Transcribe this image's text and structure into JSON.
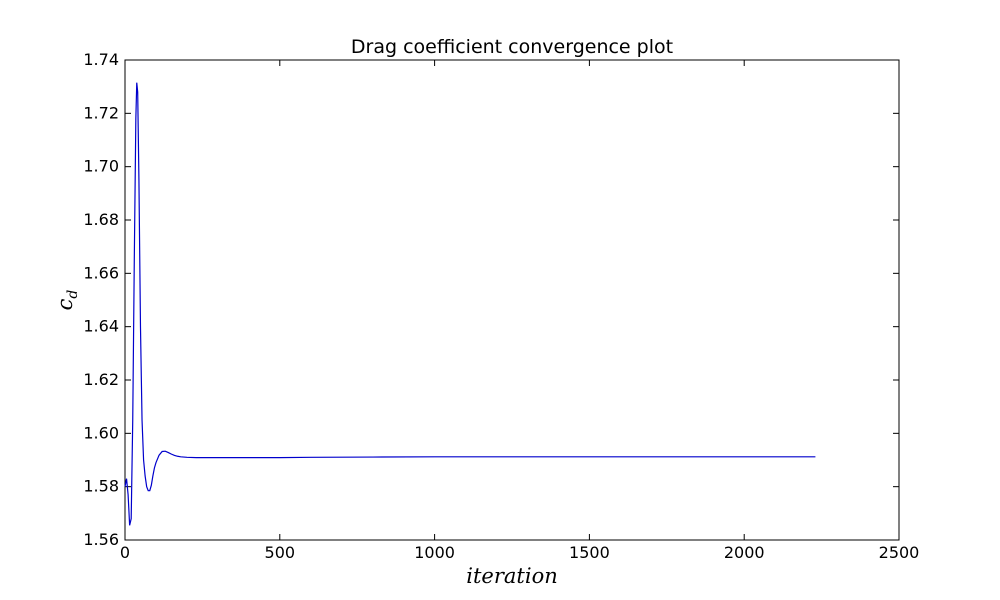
{
  "chart_data": {
    "type": "line",
    "title": "Drag coefficient convergence plot",
    "xlabel": "iteration",
    "ylabel": "c",
    "ylabel_subscript": "d",
    "xlim": [
      0,
      2500
    ],
    "ylim": [
      1.56,
      1.74
    ],
    "xticks": [
      0,
      500,
      1000,
      1500,
      2000,
      2500
    ],
    "yticks": [
      1.56,
      1.58,
      1.6,
      1.62,
      1.64,
      1.66,
      1.68,
      1.7,
      1.72,
      1.74
    ],
    "ytick_labels": [
      "1.56",
      "1.58",
      "1.60",
      "1.62",
      "1.64",
      "1.66",
      "1.68",
      "1.70",
      "1.72",
      "1.74"
    ],
    "grid": false,
    "legend": "none",
    "series": [
      {
        "color": "#0000cc",
        "x": [
          0,
          5,
          10,
          15,
          20,
          25,
          30,
          35,
          38,
          41,
          45,
          50,
          55,
          60,
          65,
          70,
          75,
          80,
          85,
          90,
          95,
          100,
          110,
          120,
          130,
          140,
          150,
          160,
          170,
          180,
          200,
          230,
          260,
          300,
          400,
          500,
          600,
          800,
          1000,
          1500,
          2000,
          2230
        ],
        "y": [
          1.58,
          1.583,
          1.577,
          1.5655,
          1.568,
          1.605,
          1.665,
          1.718,
          1.7315,
          1.728,
          1.695,
          1.64,
          1.605,
          1.59,
          1.584,
          1.58,
          1.5785,
          1.5785,
          1.5805,
          1.584,
          1.587,
          1.589,
          1.5918,
          1.5932,
          1.5933,
          1.5928,
          1.5922,
          1.5917,
          1.5914,
          1.5912,
          1.591,
          1.5909,
          1.5909,
          1.5909,
          1.5909,
          1.5909,
          1.591,
          1.5911,
          1.5912,
          1.5912,
          1.5912,
          1.5912
        ]
      }
    ]
  }
}
